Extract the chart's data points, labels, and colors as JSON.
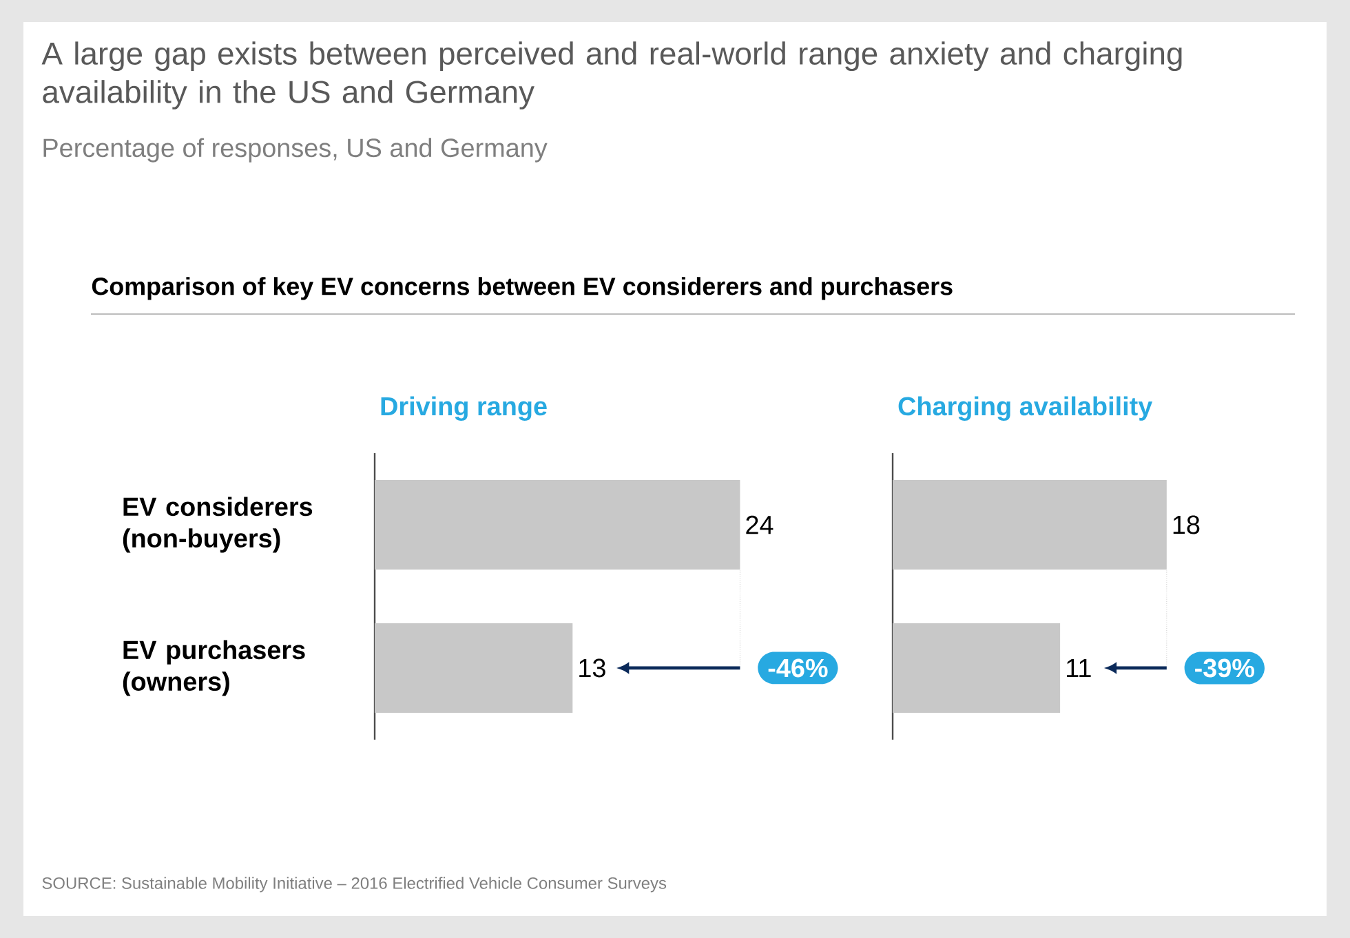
{
  "chart_data": [
    {
      "type": "other",
      "title": "A large gap exists between perceived and real-world range anxiety and charging availability in the US and Germany",
      "subtitle": "Percentage of responses, US and Germany",
      "annotations": [
        "Comparison of key EV concerns between EV considerers and purchasers",
        "SOURCE: Sustainable Mobility Initiative – 2016 Electrified Vehicle Consumer Surveys"
      ]
    },
    {
      "type": "bar",
      "orientation": "horizontal",
      "title": "Driving range",
      "categories": [
        "EV considerers (non-buyers)",
        "EV purchasers (owners)"
      ],
      "values": [
        24,
        13
      ],
      "color": "#c8c8c8",
      "data_labels": true,
      "annotations": [
        "-46%"
      ]
    },
    {
      "type": "bar",
      "orientation": "horizontal",
      "title": "Charging availability",
      "categories": [
        null,
        null
      ],
      "values": [
        18,
        11
      ],
      "color": "#c8c8c8",
      "data_labels": true,
      "annotations": [
        "-39%"
      ]
    }
  ]
}
